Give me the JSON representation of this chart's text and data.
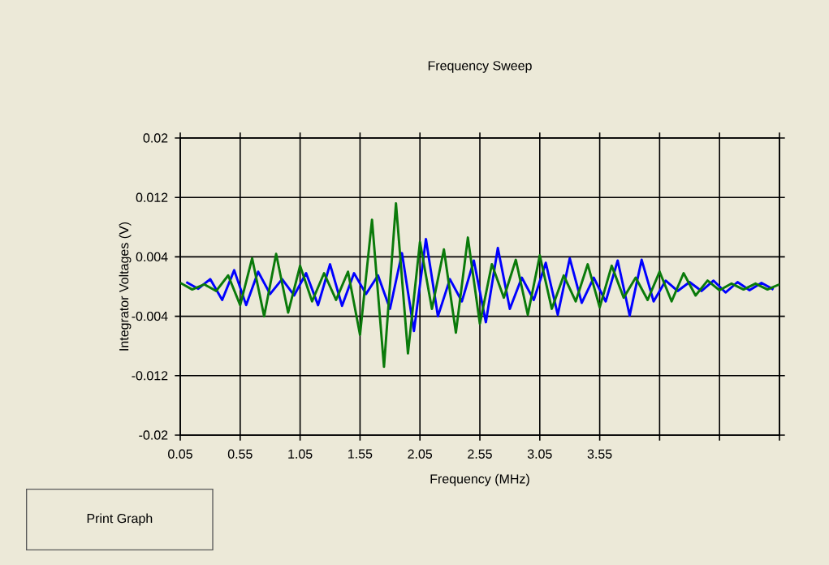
{
  "chart_data": {
    "type": "line",
    "title": "Frequency Sweep",
    "xlabel": "Frequency (MHz)",
    "ylabel": "Integrator Voltages (V)",
    "xlim": [
      0.05,
      5.05
    ],
    "ylim": [
      -0.02,
      0.02
    ],
    "xticks": [
      0.05,
      0.55,
      1.05,
      1.55,
      2.05,
      2.55,
      3.05,
      3.55,
      {
        "value": 4.05,
        "label": null
      },
      {
        "value": 4.55,
        "label": null
      },
      {
        "value": 5.05,
        "label": null
      }
    ],
    "yticks": [
      -0.02,
      -0.012,
      -0.004,
      0.004,
      0.012,
      0.02
    ],
    "grid": true,
    "annotations": [
      "Print Graph"
    ],
    "series": [
      {
        "color": "#0000ff",
        "x": [
          0.1,
          0.2,
          0.3,
          0.4,
          0.5,
          0.6,
          0.7,
          0.8,
          0.9,
          1.0,
          1.1,
          1.2,
          1.3,
          1.4,
          1.5,
          1.6,
          1.7,
          1.8,
          1.9,
          2.0,
          2.1,
          2.2,
          2.3,
          2.4,
          2.5,
          2.6,
          2.7,
          2.8,
          2.9,
          3.0,
          3.1,
          3.2,
          3.3,
          3.4,
          3.5,
          3.6,
          3.7,
          3.8,
          3.9,
          4.0,
          4.1,
          4.2,
          4.3,
          4.4,
          4.5,
          4.6,
          4.7,
          4.8,
          4.9,
          5.0
        ],
        "values": [
          0.0006,
          -0.0003,
          0.001,
          -0.0018,
          0.0022,
          -0.0025,
          0.002,
          -0.001,
          0.001,
          -0.0012,
          0.0018,
          -0.0025,
          0.003,
          -0.0026,
          0.0018,
          -0.001,
          0.0015,
          -0.003,
          0.0045,
          -0.006,
          0.0064,
          -0.004,
          0.001,
          -0.002,
          0.0035,
          -0.0048,
          0.0052,
          -0.003,
          0.0012,
          -0.0018,
          0.0032,
          -0.0038,
          0.0038,
          -0.0022,
          0.0012,
          -0.002,
          0.0035,
          -0.0039,
          0.0036,
          -0.002,
          0.0008,
          -0.0006,
          0.0006,
          -0.0006,
          0.0008,
          -0.0008,
          0.0006,
          -0.0005,
          0.0005,
          -0.0004
        ]
      },
      {
        "color": "#0a7a0a",
        "x": [
          0.05,
          0.15,
          0.25,
          0.35,
          0.45,
          0.55,
          0.65,
          0.75,
          0.85,
          0.95,
          1.05,
          1.15,
          1.25,
          1.35,
          1.45,
          1.55,
          1.65,
          1.75,
          1.85,
          1.95,
          2.05,
          2.15,
          2.25,
          2.35,
          2.45,
          2.55,
          2.65,
          2.75,
          2.85,
          2.95,
          3.05,
          3.15,
          3.25,
          3.35,
          3.45,
          3.55,
          3.65,
          3.75,
          3.85,
          3.95,
          4.05,
          4.15,
          4.25,
          4.35,
          4.45,
          4.55,
          4.65,
          4.75,
          4.85,
          4.95,
          5.05
        ],
        "values": [
          0.0005,
          -0.0004,
          0.0003,
          -0.0006,
          0.0015,
          -0.0025,
          0.0038,
          -0.004,
          0.0044,
          -0.0035,
          0.0028,
          -0.002,
          0.0018,
          -0.0018,
          0.002,
          -0.0065,
          0.009,
          -0.0108,
          0.0112,
          -0.009,
          0.006,
          -0.003,
          0.005,
          -0.0062,
          0.0066,
          -0.005,
          0.003,
          -0.0015,
          0.0036,
          -0.0038,
          0.0042,
          -0.003,
          0.0015,
          -0.002,
          0.003,
          -0.0028,
          0.0028,
          -0.0015,
          0.0012,
          -0.0018,
          0.002,
          -0.002,
          0.0018,
          -0.0012,
          0.0008,
          -0.0005,
          0.0004,
          -0.0004,
          0.0004,
          -0.0004,
          0.0003
        ]
      }
    ]
  }
}
